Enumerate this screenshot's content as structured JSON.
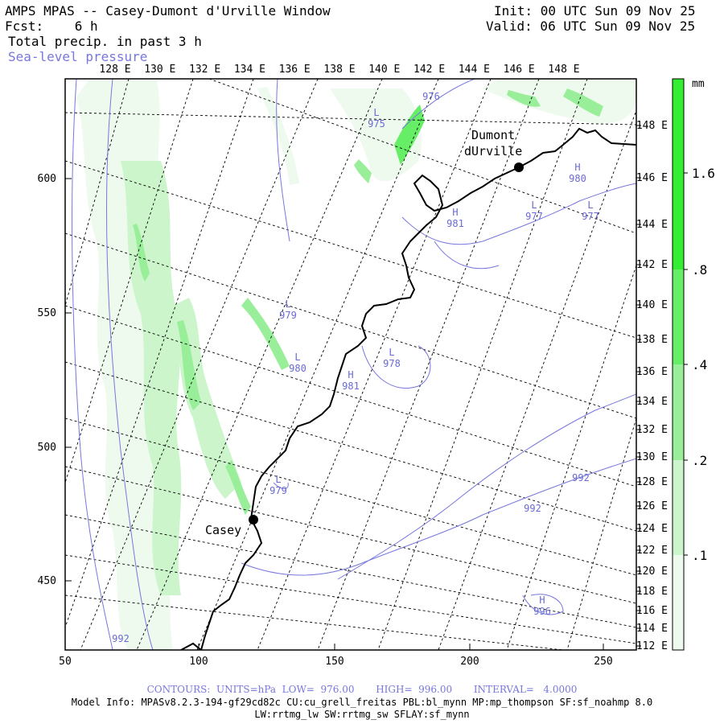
{
  "header": {
    "title": "AMPS MPAS -- Casey-Dumont d'Urville Window",
    "fcst_label": "Fcst:",
    "fcst_value": "6 h",
    "field_name": "Total precip. in past 3 h",
    "overlay_name": "Sea-level pressure",
    "init": "Init: 00 UTC Sun 09 Nov 25",
    "valid": "Valid: 06 UTC Sun 09 Nov 25"
  },
  "axes": {
    "x_ticks": [
      "50",
      "100",
      "150",
      "200",
      "250"
    ],
    "y_ticks": [
      "450",
      "500",
      "550",
      "600"
    ],
    "top_lon_labels": [
      "128 E",
      "130 E",
      "132 E",
      "134 E",
      "136 E",
      "138 E",
      "140 E",
      "142 E",
      "144 E",
      "146 E",
      "148 E"
    ],
    "right_lon_labels": [
      "148 E",
      "146 E",
      "144 E",
      "142 E",
      "140 E",
      "138 E",
      "136 E",
      "134 E",
      "132 E",
      "130 E",
      "128 E",
      "126 E",
      "124 E",
      "122 E",
      "120 E",
      "118 E",
      "116 E",
      "114 E",
      "112 E"
    ]
  },
  "colorbar": {
    "unit": "mm",
    "labels": [
      "1.6",
      ".8",
      ".4",
      ".2",
      ".1"
    ],
    "colors": [
      "#33ee33",
      "#66ee66",
      "#99ee99",
      "#ccf5cc",
      "#eefaee"
    ]
  },
  "stations": [
    {
      "name": "Casey"
    },
    {
      "name": "Dumont"
    },
    {
      "name": "dUrville"
    }
  ],
  "pressure_labels": [
    {
      "type": "L",
      "value": "975"
    },
    {
      "type": "",
      "value": "976"
    },
    {
      "type": "H",
      "value": "980"
    },
    {
      "type": "L",
      "value": "977"
    },
    {
      "type": "L",
      "value": "977"
    },
    {
      "type": "H",
      "value": "981"
    },
    {
      "type": "L",
      "value": "979"
    },
    {
      "type": "L",
      "value": "980"
    },
    {
      "type": "L",
      "value": "978"
    },
    {
      "type": "H",
      "value": "981"
    },
    {
      "type": "L",
      "value": "979"
    },
    {
      "type": "",
      "value": "992"
    },
    {
      "type": "",
      "value": "992"
    },
    {
      "type": "H",
      "value": "996"
    },
    {
      "type": "",
      "value": "992"
    }
  ],
  "footer": {
    "contours": "CONTOURS:  UNITS=hPa  LOW=  976.00       HIGH=  996.00       INTERVAL=   4.0000",
    "model_info_1": "Model Info: MPASv8.2.3-194-gf29cd82c CU:cu_grell_freitas PBL:bl_mynn MP:mp_thompson SF:sf_noahmp 8.0",
    "model_info_2": "LW:rrtmg_lw SW:rrtmg_sw SFLAY:sf_mynn"
  },
  "colors": {
    "isobar": "#7777dd",
    "coast": "#000000",
    "grid": "#000000"
  }
}
